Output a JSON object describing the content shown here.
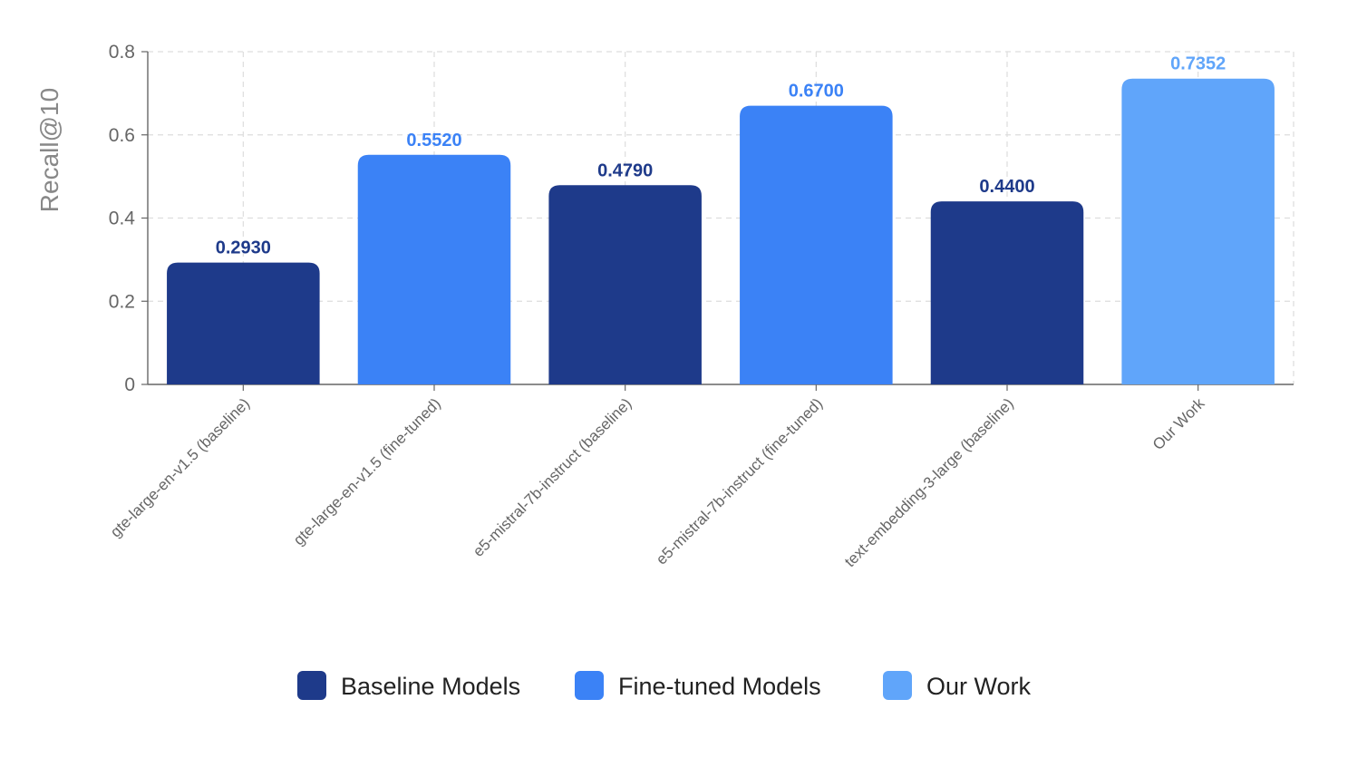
{
  "chart_data": {
    "type": "bar",
    "title": "",
    "xlabel": "",
    "ylabel": "Recall@10",
    "ylim": [
      0,
      0.8
    ],
    "yticks": [
      0,
      0.2,
      0.4,
      0.6,
      0.8
    ],
    "ytick_labels": [
      "0",
      "0.2",
      "0.4",
      "0.6",
      "0.8"
    ],
    "grid": true,
    "legend_position": "bottom",
    "categories": [
      "gte-large-en-v1.5 (baseline)",
      "gte-large-en-v1.5 (fine-tuned)",
      "e5-mistral-7b-instruct (baseline)",
      "e5-mistral-7b-instruct (fine-tuned)",
      "text-embedding-3-large (baseline)",
      "Our Work"
    ],
    "values": [
      0.293,
      0.552,
      0.479,
      0.67,
      0.44,
      0.7352
    ],
    "value_labels": [
      "0.2930",
      "0.5520",
      "0.4790",
      "0.6700",
      "0.4400",
      "0.7352"
    ],
    "groups": [
      "Baseline Models",
      "Fine-tuned Models",
      "Baseline Models",
      "Fine-tuned Models",
      "Baseline Models",
      "Our Work"
    ],
    "legend": [
      {
        "name": "Baseline Models",
        "color": "#1e3a8a",
        "label_color": "#1e3a8a"
      },
      {
        "name": "Fine-tuned Models",
        "color": "#3b82f6",
        "label_color": "#3b82f6"
      },
      {
        "name": "Our Work",
        "color": "#60a5fa",
        "label_color": "#60a5fa"
      }
    ]
  }
}
